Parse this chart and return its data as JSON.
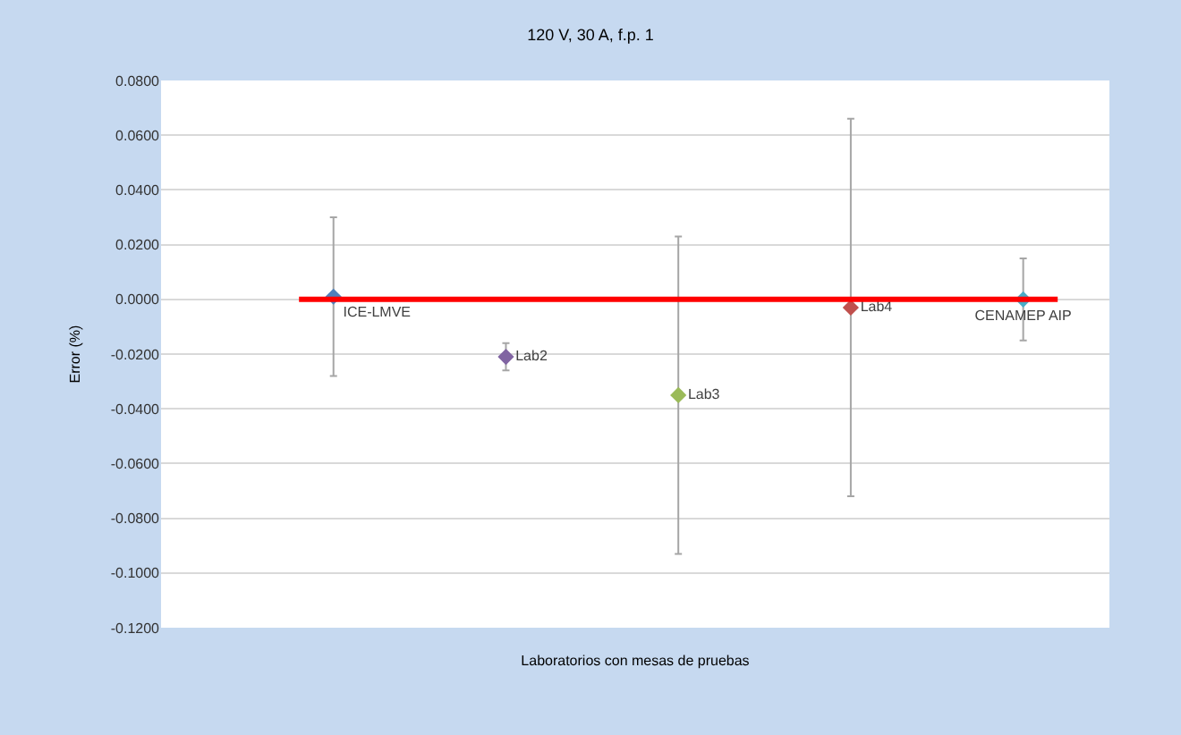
{
  "chart_data": {
    "type": "scatter",
    "title": "120 V, 30 A, f.p. 1",
    "xlabel": "Laboratorios con mesas de pruebas",
    "ylabel": "Error (%)",
    "categories": [
      null,
      null,
      null,
      null,
      null
    ],
    "series": [
      {
        "name": "ICE-LMVE",
        "color": "#4f81bd",
        "values": [
          0.001,
          null,
          null,
          null,
          null
        ],
        "errors": [
          0.029,
          null,
          null,
          null,
          null
        ]
      },
      {
        "name": "Lab2",
        "color": "#8064a2",
        "values": [
          null,
          -0.021,
          null,
          null,
          null
        ],
        "errors": [
          null,
          0.005,
          null,
          null,
          null
        ]
      },
      {
        "name": "Lab3",
        "color": "#9bbb59",
        "values": [
          null,
          null,
          -0.035,
          null,
          null
        ],
        "errors": [
          null,
          null,
          0.058,
          null,
          null
        ]
      },
      {
        "name": "Lab4",
        "color": "#c0504d",
        "values": [
          null,
          null,
          null,
          -0.003,
          null
        ],
        "errors": [
          null,
          null,
          null,
          0.069,
          null
        ]
      },
      {
        "name": "CENAMEP AIP",
        "color": "#4bacc6",
        "values": [
          null,
          null,
          null,
          null,
          0.0
        ],
        "errors": [
          null,
          null,
          null,
          null,
          0.015
        ]
      }
    ],
    "ref_lines": [
      {
        "axis": "y",
        "value": 0.0,
        "color": "#ff0000"
      }
    ],
    "ylim": [
      -0.12,
      0.08
    ],
    "yticks": [
      {
        "value": -0.12,
        "label": "-0.1200"
      },
      {
        "value": -0.1,
        "label": "-0.1000"
      },
      {
        "value": -0.08,
        "label": "-0.0800"
      },
      {
        "value": -0.06,
        "label": "-0.0600"
      },
      {
        "value": -0.04,
        "label": "-0.0400"
      },
      {
        "value": -0.02,
        "label": "-0.0200"
      },
      {
        "value": 0.0,
        "label": "0.0000"
      },
      {
        "value": 0.02,
        "label": "0.0200"
      },
      {
        "value": 0.04,
        "label": "0.0400"
      },
      {
        "value": 0.06,
        "label": "0.0600"
      },
      {
        "value": 0.08,
        "label": "0.0800"
      }
    ],
    "grid": "y",
    "legend": false,
    "marker": "diamond"
  }
}
